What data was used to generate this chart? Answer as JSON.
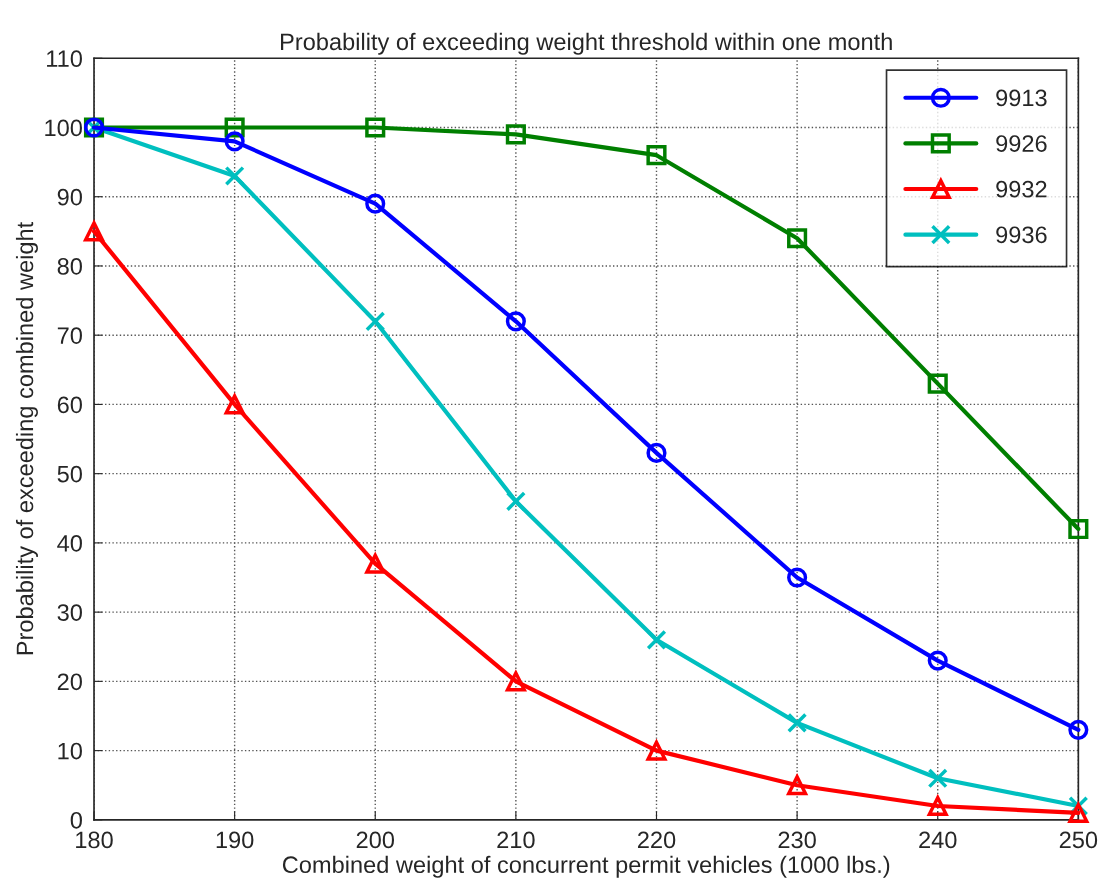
{
  "chart_data": {
    "type": "line",
    "title": "Probability of exceeding weight threshold within one month",
    "xlabel": "Combined weight of concurrent permit vehicles (1000 lbs.)",
    "ylabel": "Probability of exceeding combined weight",
    "x": [
      180,
      190,
      200,
      210,
      220,
      230,
      240,
      250
    ],
    "series": [
      {
        "name": "9913",
        "color": "#0000ff",
        "marker": "circle",
        "values": [
          100,
          98,
          89,
          72,
          53,
          35,
          23,
          13
        ]
      },
      {
        "name": "9926",
        "color": "#007f00",
        "marker": "square",
        "values": [
          100,
          100,
          100,
          99,
          96,
          84,
          63,
          42
        ]
      },
      {
        "name": "9932",
        "color": "#ff0000",
        "marker": "triangle",
        "values": [
          85,
          60,
          37,
          20,
          10,
          5,
          2,
          1
        ]
      },
      {
        "name": "9936",
        "color": "#00bfbf",
        "marker": "cross",
        "values": [
          100,
          93,
          72,
          46,
          26,
          14,
          6,
          2
        ]
      }
    ],
    "xlim": [
      180,
      250
    ],
    "xticks": [
      180,
      190,
      200,
      210,
      220,
      230,
      240,
      250
    ],
    "ylim": [
      0,
      110
    ],
    "yticks": [
      0,
      10,
      20,
      30,
      40,
      50,
      60,
      70,
      80,
      90,
      100,
      110
    ],
    "grid": true,
    "legend": "top right",
    "line_style": "solid"
  }
}
